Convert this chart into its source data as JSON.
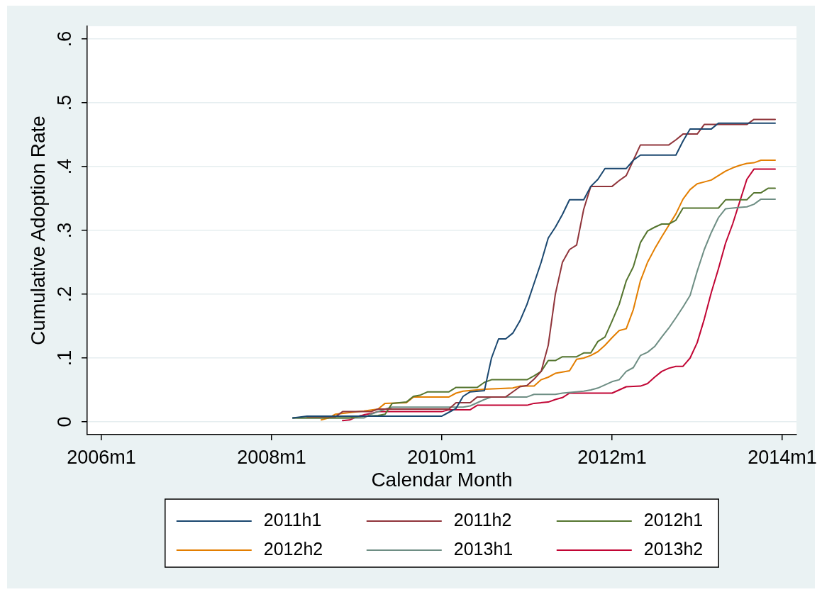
{
  "chart_data": {
    "type": "line",
    "xlabel": "Calendar Month",
    "ylabel": "Cumulative Adoption Rate",
    "xlim": [
      "2005-11",
      "2014-03"
    ],
    "xticks": [
      {
        "value": "2006-01",
        "label": "2006m1"
      },
      {
        "value": "2008-01",
        "label": "2008m1"
      },
      {
        "value": "2010-01",
        "label": "2010m1"
      },
      {
        "value": "2012-01",
        "label": "2012m1"
      },
      {
        "value": "2014-01",
        "label": "2014m1"
      }
    ],
    "ylim": [
      -0.02,
      0.62
    ],
    "yticks": [
      0,
      {
        "value": 0.1,
        "label": ".1"
      },
      {
        "value": 0.2,
        "label": ".2"
      },
      {
        "value": 0.3,
        "label": ".3"
      },
      {
        "value": 0.4,
        "label": ".4"
      },
      {
        "value": 0.5,
        "label": ".5"
      },
      {
        "value": 0.6,
        "label": ".6"
      }
    ],
    "grid": "y",
    "legend": "bottom",
    "series": [
      {
        "name": "2011h1",
        "color": "#1a476f",
        "x": [
          "2008-04",
          "2008-06",
          "2010-01",
          "2010-02",
          "2010-03",
          "2010-04",
          "2010-05",
          "2010-07",
          "2010-08",
          "2010-09",
          "2010-10",
          "2010-11",
          "2010-12",
          "2011-01",
          "2011-02",
          "2011-03",
          "2011-04",
          "2011-05",
          "2011-06",
          "2011-07",
          "2011-09",
          "2011-10",
          "2011-11",
          "2011-12",
          "2012-03",
          "2012-04",
          "2012-05",
          "2012-10",
          "2012-11",
          "2012-12",
          "2013-03",
          "2013-04",
          "2013-12"
        ],
        "values": [
          0.006,
          0.009,
          0.009,
          0.015,
          0.021,
          0.04,
          0.047,
          0.049,
          0.1,
          0.13,
          0.13,
          0.139,
          0.158,
          0.184,
          0.217,
          0.25,
          0.288,
          0.305,
          0.325,
          0.348,
          0.348,
          0.369,
          0.38,
          0.397,
          0.397,
          0.41,
          0.418,
          0.418,
          0.44,
          0.459,
          0.459,
          0.468,
          0.468
        ]
      },
      {
        "name": "2011h2",
        "color": "#90353b",
        "x": [
          "2008-06",
          "2008-10",
          "2008-11",
          "2009-03",
          "2009-04",
          "2010-02",
          "2010-03",
          "2010-05",
          "2010-06",
          "2010-10",
          "2010-11",
          "2010-12",
          "2011-01",
          "2011-02",
          "2011-03",
          "2011-04",
          "2011-05",
          "2011-06",
          "2011-07",
          "2011-08",
          "2011-09",
          "2011-10",
          "2012-01",
          "2012-02",
          "2012-03",
          "2012-04",
          "2012-05",
          "2012-09",
          "2012-10",
          "2012-11",
          "2013-01",
          "2013-02",
          "2013-08",
          "2013-09",
          "2013-12"
        ],
        "values": [
          0.008,
          0.008,
          0.016,
          0.016,
          0.02,
          0.02,
          0.03,
          0.03,
          0.039,
          0.039,
          0.047,
          0.055,
          0.057,
          0.067,
          0.079,
          0.12,
          0.2,
          0.25,
          0.27,
          0.277,
          0.333,
          0.369,
          0.369,
          0.378,
          0.386,
          0.41,
          0.434,
          0.434,
          0.442,
          0.451,
          0.451,
          0.466,
          0.466,
          0.474,
          0.474
        ]
      },
      {
        "name": "2012h1",
        "color": "#55752f",
        "x": [
          "2008-04",
          "2008-12",
          "2009-01",
          "2009-04",
          "2009-05",
          "2009-06",
          "2009-08",
          "2009-09",
          "2009-10",
          "2009-11",
          "2010-02",
          "2010-03",
          "2010-06",
          "2010-07",
          "2010-08",
          "2011-01",
          "2011-02",
          "2011-03",
          "2011-04",
          "2011-05",
          "2011-06",
          "2011-08",
          "2011-09",
          "2011-10",
          "2011-11",
          "2011-12",
          "2012-01",
          "2012-02",
          "2012-03",
          "2012-04",
          "2012-05",
          "2012-06",
          "2012-07",
          "2012-08",
          "2012-09",
          "2012-10",
          "2012-11",
          "2013-04",
          "2013-05",
          "2013-08",
          "2013-09",
          "2013-10",
          "2013-11",
          "2013-12"
        ],
        "values": [
          0.006,
          0.006,
          0.008,
          0.01,
          0.012,
          0.029,
          0.031,
          0.04,
          0.042,
          0.047,
          0.047,
          0.054,
          0.054,
          0.062,
          0.066,
          0.066,
          0.072,
          0.079,
          0.096,
          0.096,
          0.102,
          0.102,
          0.108,
          0.108,
          0.126,
          0.133,
          0.158,
          0.184,
          0.221,
          0.243,
          0.281,
          0.299,
          0.305,
          0.31,
          0.31,
          0.316,
          0.335,
          0.335,
          0.348,
          0.348,
          0.359,
          0.359,
          0.366,
          0.366
        ]
      },
      {
        "name": "2012h2",
        "color": "#e37e00",
        "x": [
          "2008-08",
          "2008-09",
          "2008-10",
          "2009-02",
          "2009-04",
          "2009-05",
          "2009-08",
          "2009-09",
          "2010-02",
          "2010-03",
          "2010-04",
          "2010-07",
          "2010-11",
          "2010-12",
          "2011-02",
          "2011-03",
          "2011-04",
          "2011-05",
          "2011-06",
          "2011-07",
          "2011-08",
          "2011-09",
          "2011-10",
          "2011-11",
          "2011-12",
          "2012-01",
          "2012-02",
          "2012-03",
          "2012-04",
          "2012-05",
          "2012-06",
          "2012-07",
          "2012-08",
          "2012-09",
          "2012-10",
          "2012-11",
          "2012-12",
          "2013-01",
          "2013-02",
          "2013-03",
          "2013-04",
          "2013-05",
          "2013-06",
          "2013-07",
          "2013-08",
          "2013-09",
          "2013-10",
          "2013-12"
        ],
        "values": [
          0.003,
          0.006,
          0.012,
          0.017,
          0.02,
          0.029,
          0.03,
          0.039,
          0.039,
          0.045,
          0.048,
          0.051,
          0.053,
          0.056,
          0.056,
          0.066,
          0.07,
          0.076,
          0.078,
          0.08,
          0.098,
          0.1,
          0.104,
          0.11,
          0.12,
          0.132,
          0.143,
          0.146,
          0.176,
          0.221,
          0.25,
          0.271,
          0.29,
          0.308,
          0.326,
          0.349,
          0.364,
          0.373,
          0.376,
          0.379,
          0.386,
          0.393,
          0.398,
          0.402,
          0.405,
          0.406,
          0.41,
          0.41
        ]
      },
      {
        "name": "2013h1",
        "color": "#6e8e84",
        "x": [
          "2008-04",
          "2009-02",
          "2009-03",
          "2009-05",
          "2009-06",
          "2010-04",
          "2010-05",
          "2010-06",
          "2010-07",
          "2010-08",
          "2011-01",
          "2011-02",
          "2011-05",
          "2011-06",
          "2011-09",
          "2011-10",
          "2011-11",
          "2011-12",
          "2012-01",
          "2012-02",
          "2012-03",
          "2012-04",
          "2012-05",
          "2012-06",
          "2012-07",
          "2012-08",
          "2012-09",
          "2012-10",
          "2012-11",
          "2012-12",
          "2013-01",
          "2013-02",
          "2013-03",
          "2013-04",
          "2013-05",
          "2013-06",
          "2013-07",
          "2013-08",
          "2013-09",
          "2013-10",
          "2013-12"
        ],
        "values": [
          0.006,
          0.006,
          0.012,
          0.02,
          0.023,
          0.023,
          0.025,
          0.03,
          0.035,
          0.039,
          0.039,
          0.043,
          0.043,
          0.045,
          0.048,
          0.05,
          0.053,
          0.058,
          0.063,
          0.066,
          0.079,
          0.085,
          0.104,
          0.109,
          0.118,
          0.133,
          0.147,
          0.163,
          0.18,
          0.198,
          0.236,
          0.27,
          0.297,
          0.32,
          0.334,
          0.335,
          0.336,
          0.337,
          0.341,
          0.349,
          0.349
        ]
      },
      {
        "name": "2013h2",
        "color": "#c10534",
        "x": [
          "2008-11",
          "2008-12",
          "2009-01",
          "2009-02",
          "2009-03",
          "2009-04",
          "2010-01",
          "2010-02",
          "2010-05",
          "2010-06",
          "2011-01",
          "2011-02",
          "2011-04",
          "2011-05",
          "2011-06",
          "2011-07",
          "2012-01",
          "2012-02",
          "2012-03",
          "2012-05",
          "2012-06",
          "2012-07",
          "2012-08",
          "2012-09",
          "2012-10",
          "2012-11",
          "2012-12",
          "2013-01",
          "2013-02",
          "2013-03",
          "2013-04",
          "2013-05",
          "2013-06",
          "2013-07",
          "2013-08",
          "2013-09",
          "2013-12"
        ],
        "values": [
          0.002,
          0.003,
          0.008,
          0.011,
          0.013,
          0.016,
          0.016,
          0.019,
          0.019,
          0.026,
          0.026,
          0.029,
          0.031,
          0.035,
          0.038,
          0.045,
          0.045,
          0.05,
          0.055,
          0.056,
          0.06,
          0.07,
          0.079,
          0.084,
          0.087,
          0.087,
          0.1,
          0.124,
          0.161,
          0.203,
          0.24,
          0.28,
          0.31,
          0.345,
          0.38,
          0.396,
          0.396
        ]
      }
    ]
  }
}
